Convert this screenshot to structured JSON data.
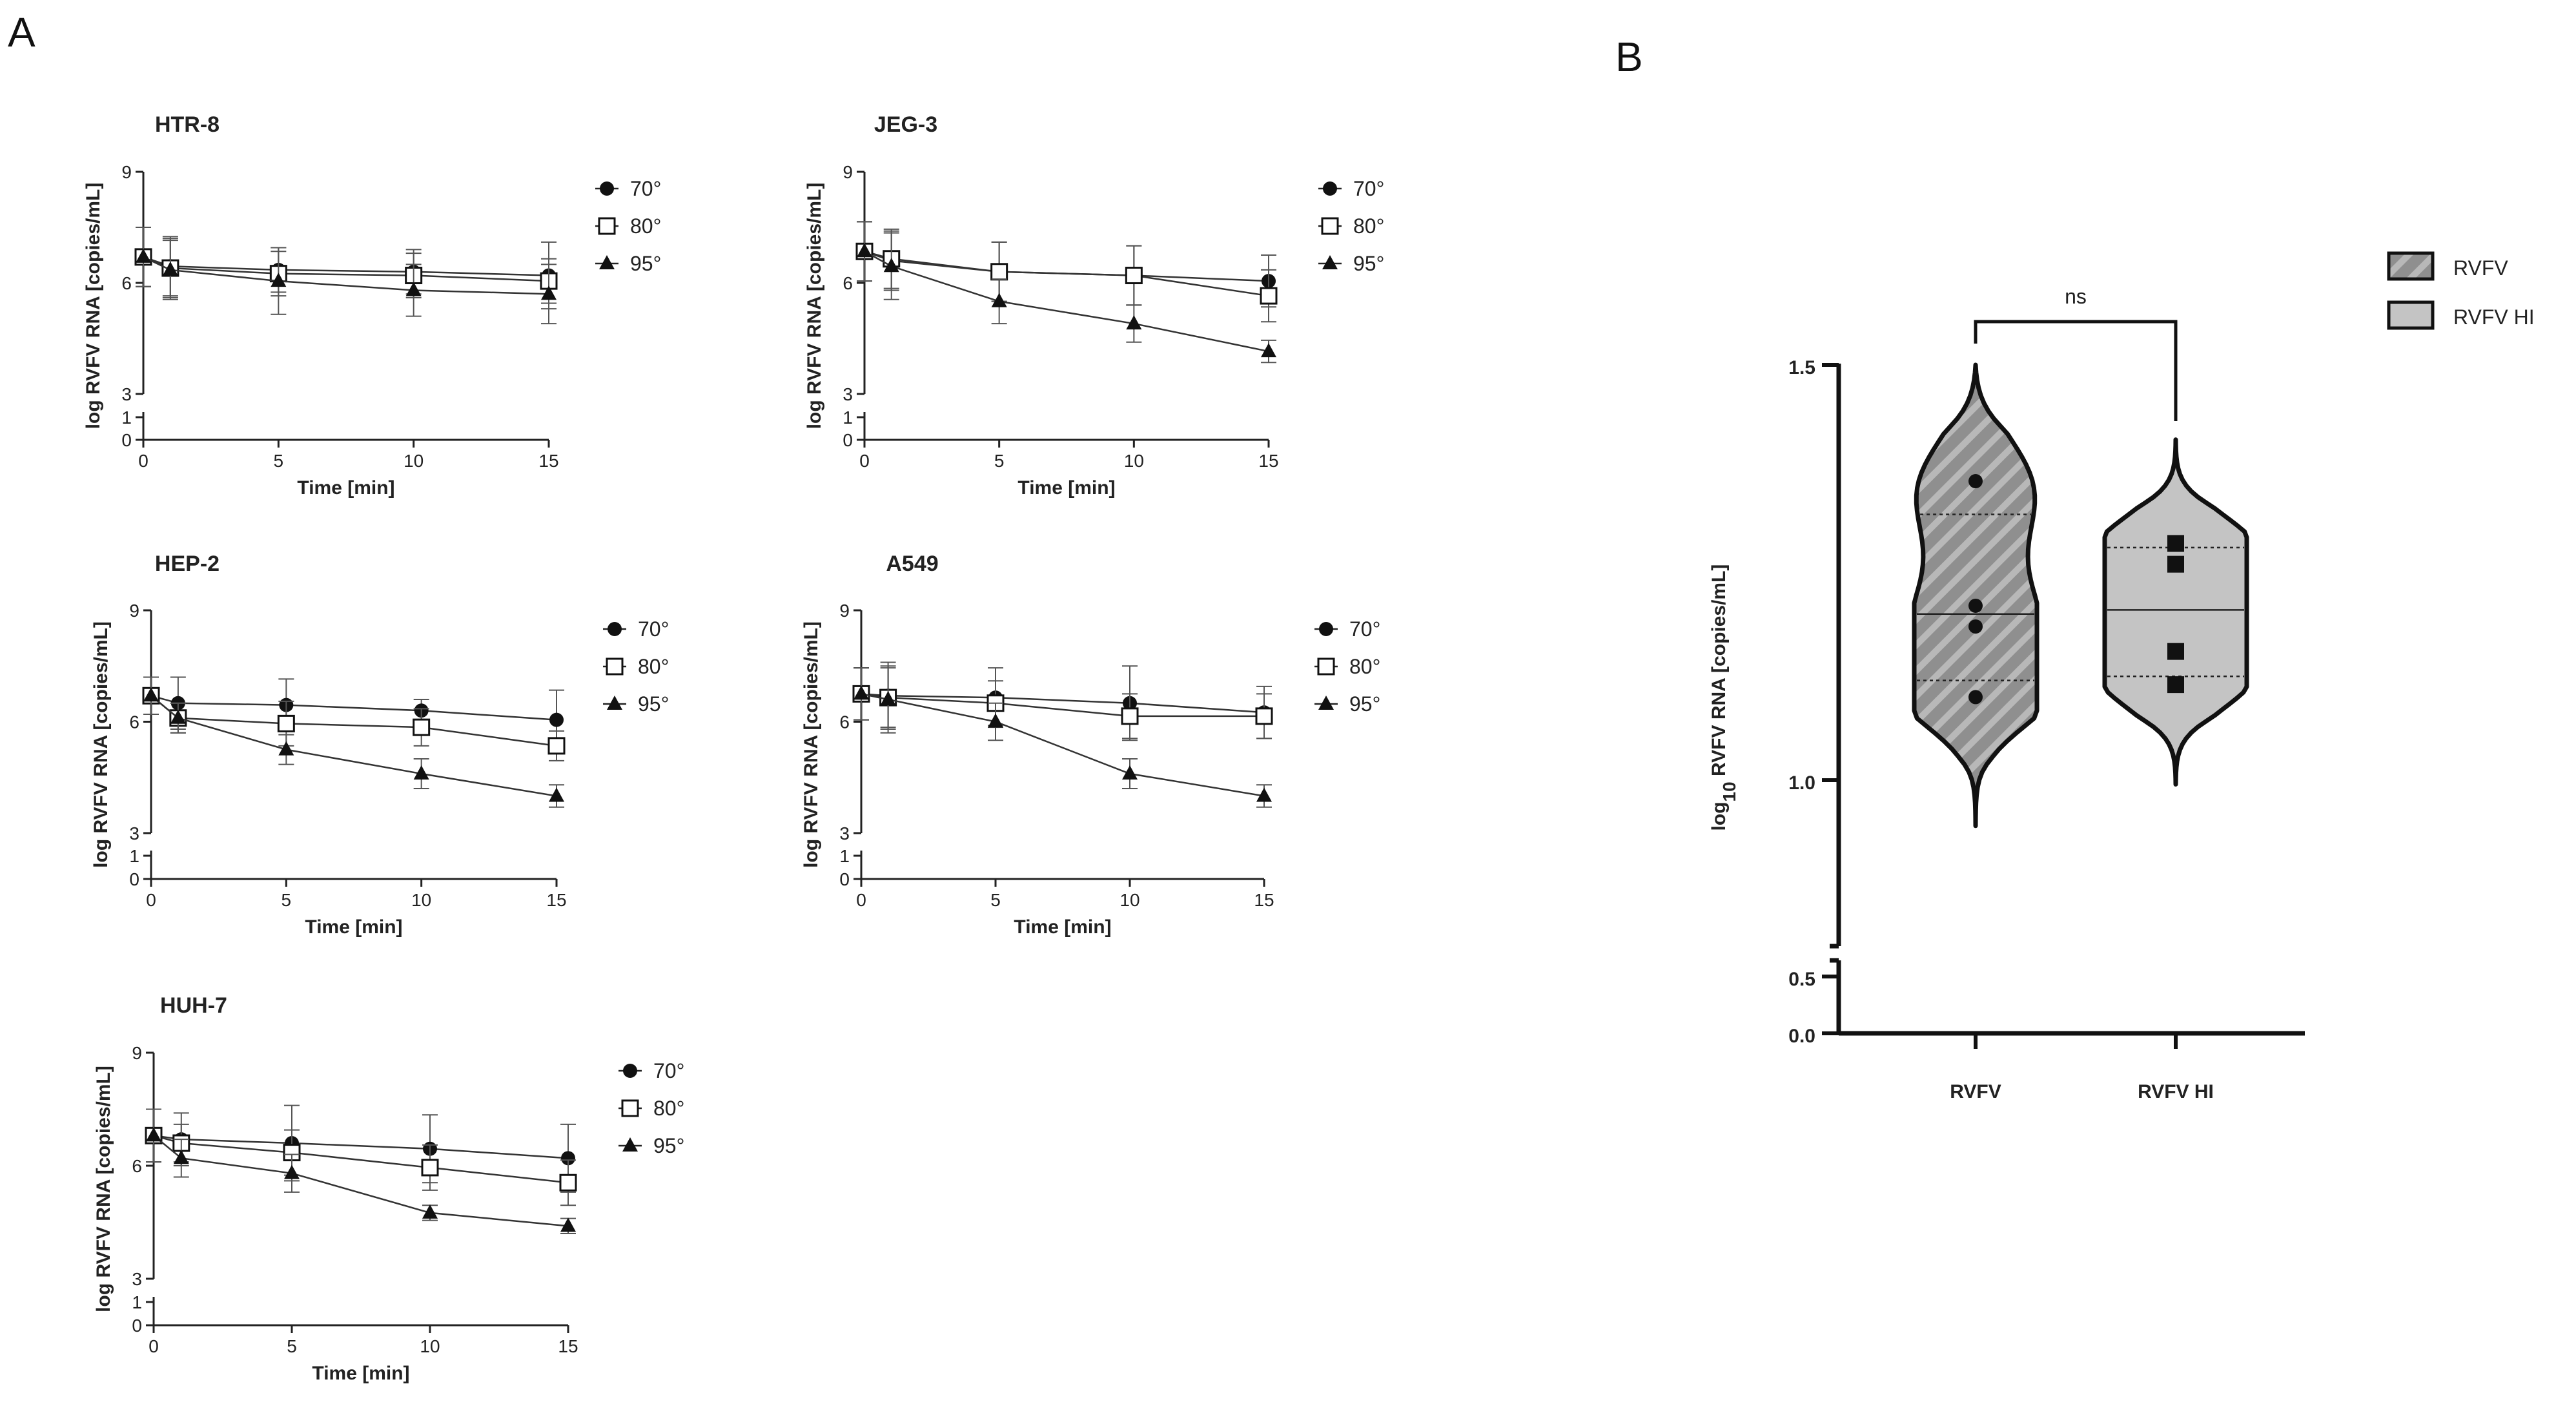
{
  "panel_letters": {
    "a": "A",
    "b": "B"
  },
  "chart_data": [
    {
      "type": "line",
      "title": "HTR-8",
      "xlabel": "Time [min]",
      "ylabel": "log RVFV RNA [copies/mL]",
      "xlim": [
        0,
        15
      ],
      "x_ticks": [
        0,
        5,
        10,
        15
      ],
      "y_ticks": [
        0,
        1,
        3,
        6,
        9
      ],
      "y_axis_break": [
        1,
        3
      ],
      "x": [
        0,
        1,
        5,
        10,
        15
      ],
      "series": [
        {
          "name": "70°",
          "marker": "circle",
          "values": [
            6.7,
            6.45,
            6.35,
            6.3,
            6.2
          ],
          "errors": [
            0.8,
            0.8,
            0.6,
            0.6,
            0.9
          ]
        },
        {
          "name": "80°",
          "marker": "square-open",
          "values": [
            6.7,
            6.4,
            6.25,
            6.2,
            6.05
          ],
          "errors": [
            0.8,
            0.8,
            0.6,
            0.6,
            0.6
          ]
        },
        {
          "name": "95°",
          "marker": "triangle",
          "values": [
            6.7,
            6.35,
            6.05,
            5.8,
            5.7
          ],
          "errors": [
            0.8,
            0.8,
            0.9,
            0.7,
            0.8
          ]
        }
      ]
    },
    {
      "type": "line",
      "title": "JEG-3",
      "xlabel": "Time [min]",
      "ylabel": "log RVFV RNA [copies/mL]",
      "xlim": [
        0,
        15
      ],
      "x_ticks": [
        0,
        5,
        10,
        15
      ],
      "y_ticks": [
        0,
        1,
        3,
        6,
        9
      ],
      "y_axis_break": [
        1,
        3
      ],
      "x": [
        0,
        1,
        5,
        10,
        15
      ],
      "series": [
        {
          "name": "70°",
          "marker": "circle",
          "values": [
            6.85,
            6.6,
            6.3,
            6.2,
            6.05
          ],
          "errors": [
            0.8,
            0.8,
            0.8,
            0.8,
            0.7
          ]
        },
        {
          "name": "80°",
          "marker": "square-open",
          "values": [
            6.85,
            6.65,
            6.3,
            6.2,
            5.65
          ],
          "errors": [
            0.8,
            0.8,
            0.8,
            0.8,
            0.7
          ]
        },
        {
          "name": "95°",
          "marker": "triangle",
          "values": [
            6.85,
            6.45,
            5.5,
            4.9,
            4.15
          ],
          "errors": [
            0.8,
            0.9,
            0.6,
            0.5,
            0.3
          ]
        }
      ]
    },
    {
      "type": "line",
      "title": "HEP-2",
      "xlabel": "Time [min]",
      "ylabel": "log RVFV RNA [copies/mL]",
      "xlim": [
        0,
        15
      ],
      "x_ticks": [
        0,
        5,
        10,
        15
      ],
      "y_ticks": [
        0,
        1,
        3,
        6,
        9
      ],
      "y_axis_break": [
        1,
        3
      ],
      "x": [
        0,
        1,
        5,
        10,
        15
      ],
      "series": [
        {
          "name": "70°",
          "marker": "circle",
          "values": [
            6.7,
            6.5,
            6.45,
            6.3,
            6.05
          ],
          "errors": [
            0.5,
            0.7,
            0.7,
            0.3,
            0.8
          ]
        },
        {
          "name": "80°",
          "marker": "square-open",
          "values": [
            6.7,
            6.1,
            5.95,
            5.85,
            5.35
          ],
          "errors": [
            0.5,
            0.4,
            0.6,
            0.5,
            0.4
          ]
        },
        {
          "name": "95°",
          "marker": "triangle",
          "values": [
            6.7,
            6.1,
            5.25,
            4.6,
            4.0
          ],
          "errors": [
            0.5,
            0.4,
            0.4,
            0.4,
            0.3
          ]
        }
      ]
    },
    {
      "type": "line",
      "title": "A549",
      "xlabel": "Time [min]",
      "ylabel": "log RVFV RNA [copies/mL]",
      "xlim": [
        0,
        15
      ],
      "x_ticks": [
        0,
        5,
        10,
        15
      ],
      "y_ticks": [
        0,
        1,
        3,
        6,
        9
      ],
      "y_axis_break": [
        1,
        3
      ],
      "x": [
        0,
        1,
        5,
        10,
        15
      ],
      "series": [
        {
          "name": "70°",
          "marker": "circle",
          "values": [
            6.75,
            6.7,
            6.65,
            6.5,
            6.25
          ],
          "errors": [
            0.7,
            0.9,
            0.8,
            1.0,
            0.7
          ]
        },
        {
          "name": "80°",
          "marker": "square-open",
          "values": [
            6.75,
            6.65,
            6.5,
            6.15,
            6.15
          ],
          "errors": [
            0.7,
            0.8,
            0.6,
            0.6,
            0.6
          ]
        },
        {
          "name": "95°",
          "marker": "triangle",
          "values": [
            6.75,
            6.6,
            6.0,
            4.6,
            4.0
          ],
          "errors": [
            0.7,
            0.9,
            0.5,
            0.4,
            0.3
          ]
        }
      ]
    },
    {
      "type": "line",
      "title": "HUH-7",
      "xlabel": "Time [min]",
      "ylabel": "log RVFV RNA [copies/mL]",
      "xlim": [
        0,
        15
      ],
      "x_ticks": [
        0,
        5,
        10,
        15
      ],
      "y_ticks": [
        0,
        1,
        3,
        6,
        9
      ],
      "y_axis_break": [
        1,
        3
      ],
      "x": [
        0,
        1,
        5,
        10,
        15
      ],
      "series": [
        {
          "name": "70°",
          "marker": "circle",
          "values": [
            6.8,
            6.7,
            6.6,
            6.45,
            6.2
          ],
          "errors": [
            0.7,
            0.7,
            1.0,
            0.9,
            0.9
          ]
        },
        {
          "name": "80°",
          "marker": "square-open",
          "values": [
            6.8,
            6.6,
            6.35,
            5.95,
            5.55
          ],
          "errors": [
            0.7,
            0.5,
            0.6,
            0.6,
            0.6
          ]
        },
        {
          "name": "95°",
          "marker": "triangle",
          "values": [
            6.8,
            6.2,
            5.8,
            4.75,
            4.4
          ],
          "errors": [
            0.7,
            0.5,
            0.5,
            0.2,
            0.2
          ]
        }
      ]
    },
    {
      "type": "violin",
      "ylabel_base": "log",
      "ylabel_sub": "10",
      "ylabel_rest": " RVFV RNA [copies/mL]",
      "y_ticks_upper": [
        "1.0",
        "1.5"
      ],
      "y_ticks_lower": [
        "0.0",
        "0.5"
      ],
      "y_axis_break": [
        0.5,
        0.8
      ],
      "categories": [
        "RVFV",
        "RVFV HI"
      ],
      "legend": [
        "RVFV",
        "RVFV HI"
      ],
      "significance": "ns",
      "groups": [
        {
          "name": "RVFV",
          "points": [
            1.36,
            1.21,
            1.185,
            1.1
          ],
          "median": 1.2,
          "q1": 1.12,
          "q3": 1.32,
          "min": 0.945,
          "max": 1.5,
          "fill": "#8f8f8f",
          "hatched": true,
          "marker": "circle"
        },
        {
          "name": "RVFV HI",
          "points": [
            1.285,
            1.26,
            1.155,
            1.115
          ],
          "median": 1.205,
          "q1": 1.125,
          "q3": 1.28,
          "min": 0.995,
          "max": 1.41,
          "fill": "#c4c4c4",
          "hatched": false,
          "marker": "square"
        }
      ]
    }
  ]
}
